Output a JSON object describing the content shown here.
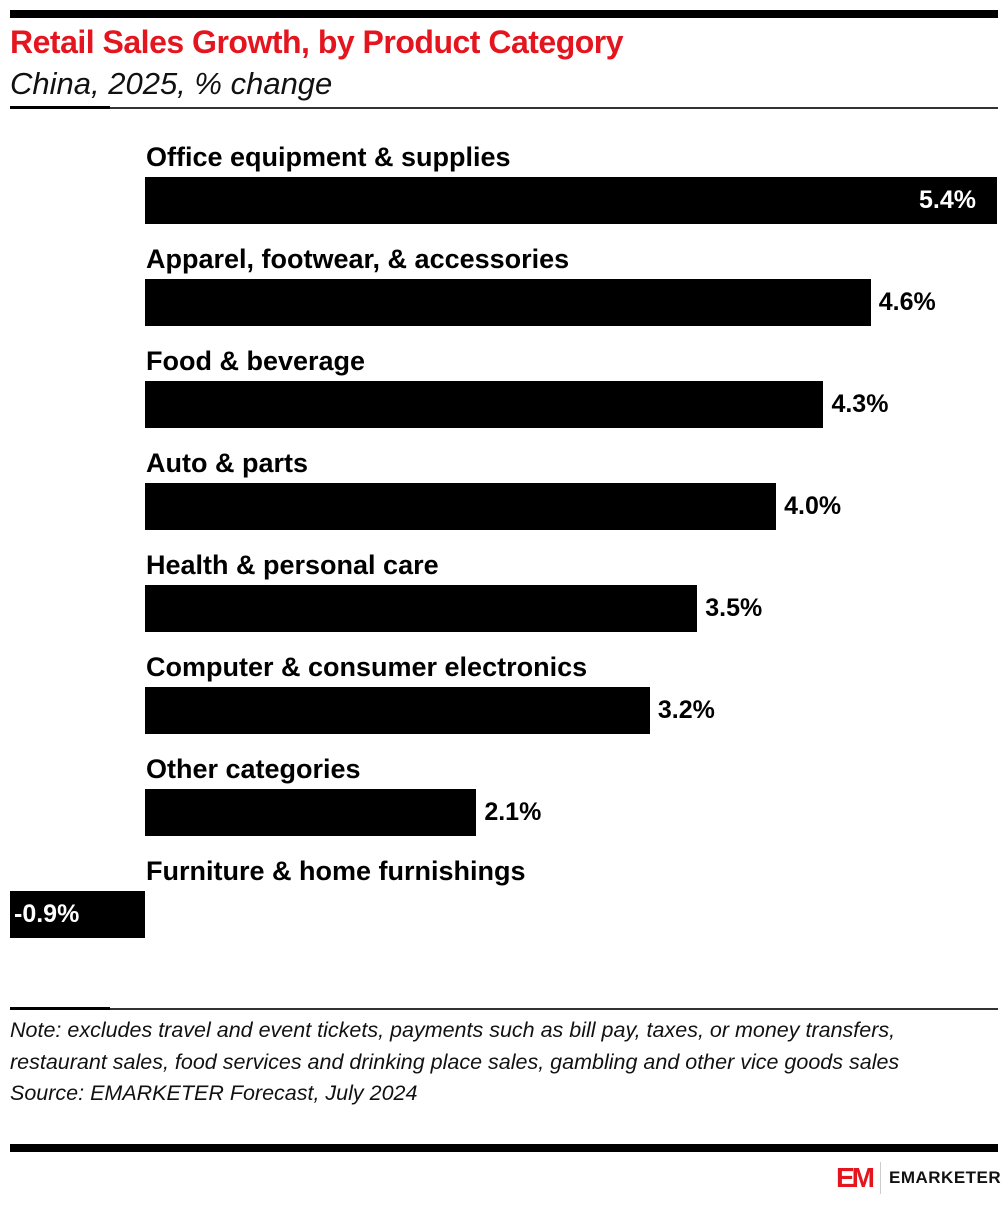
{
  "title": "Retail Sales Growth, by Product Category",
  "subtitle": "China, 2025, % change",
  "chart_data": {
    "type": "bar",
    "orientation": "horizontal",
    "title": "Retail Sales Growth, by Product Category",
    "subtitle": "China, 2025, % change",
    "categories": [
      "Office equipment & supplies",
      "Apparel, footwear, & accessories",
      "Food & beverage",
      "Auto & parts",
      "Health & personal care",
      "Computer & consumer electronics",
      "Other categories",
      "Furniture & home furnishings"
    ],
    "values": [
      5.4,
      4.6,
      4.3,
      4.0,
      3.5,
      3.2,
      2.1,
      -0.9
    ],
    "labels": [
      "5.4%",
      "4.6%",
      "4.3%",
      "4.0%",
      "3.5%",
      "3.2%",
      "2.1%",
      "-0.9%"
    ],
    "bar_color": "#000000",
    "grid": false
  },
  "note": "Note: excludes travel and event tickets, payments such as bill pay, taxes, or money transfers, restaurant sales, food services and drinking place sales, gambling and other vice goods sales",
  "source": "Source: EMARKETER Forecast, July 2024",
  "logo": {
    "mark": "EM",
    "text": "EMARKETER",
    "color": "#e4151f"
  }
}
